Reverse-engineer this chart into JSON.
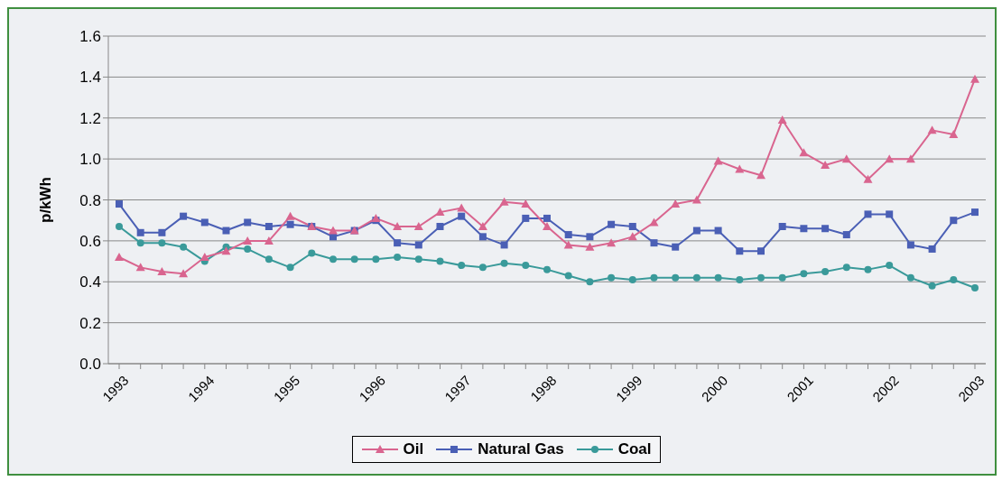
{
  "chart_data": {
    "type": "line",
    "ylabel": "p/kWh",
    "categories": [
      "1993",
      null,
      null,
      null,
      "1994",
      null,
      null,
      null,
      "1995",
      null,
      null,
      null,
      "1996",
      null,
      null,
      null,
      "1997",
      null,
      null,
      null,
      "1998",
      null,
      null,
      null,
      "1999",
      null,
      null,
      null,
      "2000",
      null,
      null,
      null,
      "2001",
      null,
      null,
      null,
      "2002",
      null,
      null,
      null,
      "2003"
    ],
    "series": [
      {
        "name": "Oil",
        "color": "#d9658f",
        "marker": "triangle",
        "values": [
          0.52,
          0.47,
          0.45,
          0.44,
          0.52,
          0.55,
          0.6,
          0.6,
          0.72,
          0.67,
          0.65,
          0.65,
          0.71,
          0.67,
          0.67,
          0.74,
          0.76,
          0.67,
          0.79,
          0.78,
          0.67,
          0.58,
          0.57,
          0.59,
          0.62,
          0.69,
          0.78,
          0.8,
          0.99,
          0.95,
          0.92,
          1.19,
          1.03,
          0.97,
          1.0,
          0.9,
          1.0,
          1.0,
          1.14,
          1.12,
          1.39
        ]
      },
      {
        "name": "Natural Gas",
        "color": "#4a5fb5",
        "marker": "square",
        "values": [
          0.78,
          0.64,
          0.64,
          0.72,
          0.69,
          0.65,
          0.69,
          0.67,
          0.68,
          0.67,
          0.62,
          0.65,
          0.7,
          0.59,
          0.58,
          0.67,
          0.72,
          0.62,
          0.58,
          0.71,
          0.71,
          0.63,
          0.62,
          0.68,
          0.67,
          0.59,
          0.57,
          0.65,
          0.65,
          0.55,
          0.55,
          0.67,
          0.66,
          0.66,
          0.63,
          0.73,
          0.73,
          0.58,
          0.56,
          0.7,
          0.74
        ]
      },
      {
        "name": "Coal",
        "color": "#3a9a9a",
        "marker": "circle",
        "values": [
          0.67,
          0.59,
          0.59,
          0.57,
          0.5,
          0.57,
          0.56,
          0.51,
          0.47,
          0.54,
          0.51,
          0.51,
          0.51,
          0.52,
          0.51,
          0.5,
          0.48,
          0.47,
          0.49,
          0.48,
          0.46,
          0.43,
          0.4,
          0.42,
          0.41,
          0.42,
          0.42,
          0.42,
          0.42,
          0.41,
          0.42,
          0.42,
          0.44,
          0.45,
          0.47,
          0.46,
          0.48,
          0.42,
          0.38,
          0.41,
          0.37
        ]
      }
    ],
    "ylim": [
      0,
      1.6
    ],
    "yticks": [
      {
        "value": 0,
        "label": "0.0"
      },
      0.2,
      0.4,
      0.6,
      0.8,
      {
        "value": 1,
        "label": "1.0"
      },
      1.2,
      1.4,
      1.6
    ],
    "grid": "y",
    "legend": "bottom",
    "line_style": "solid"
  }
}
